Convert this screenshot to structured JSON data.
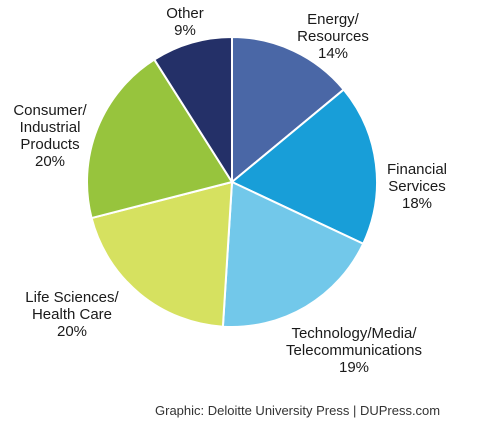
{
  "chart_data": {
    "type": "pie",
    "slices": [
      {
        "label": [
          "Energy/",
          "Resources"
        ],
        "pct": "14%",
        "value": 14,
        "color": "#4a67a6"
      },
      {
        "label": [
          "Financial",
          "Services"
        ],
        "pct": "18%",
        "value": 18,
        "color": "#189ed8"
      },
      {
        "label": [
          "Technology/Media/",
          "Telecommunications"
        ],
        "pct": "19%",
        "value": 19,
        "color": "#72c8ea"
      },
      {
        "label": [
          "Life Sciences/",
          "Health Care"
        ],
        "pct": "20%",
        "value": 20,
        "color": "#d6e160"
      },
      {
        "label": [
          "Consumer/",
          "Industrial",
          "Products"
        ],
        "pct": "20%",
        "value": 20,
        "color": "#97c43d"
      },
      {
        "label": [
          "Other"
        ],
        "pct": "9%",
        "value": 9,
        "color": "#243068"
      }
    ]
  },
  "credit": "Graphic: Deloitte University Press | DUPress.com"
}
